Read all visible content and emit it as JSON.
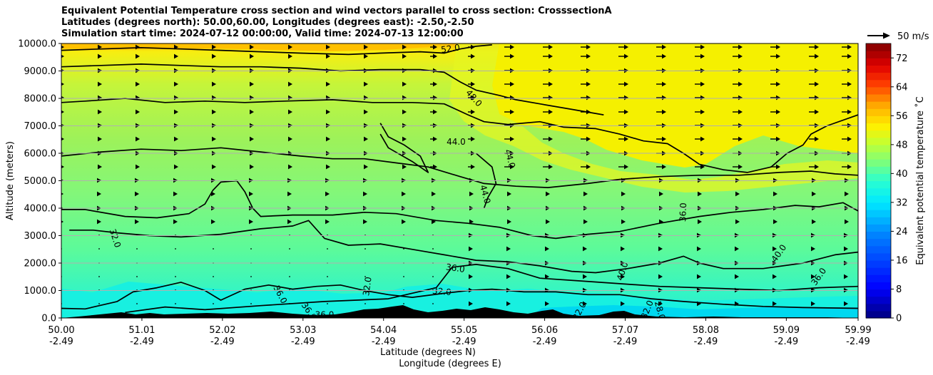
{
  "chart_data": {
    "type": "contour",
    "title_lines": [
      "Equivalent Potential Temperature cross section and wind vectors parallel to cross section: CrosssectionA",
      "Latitudes (degrees north): 50.00,60.00, Longitudes (degrees east): -2.50,-2.50",
      "Simulation start time: 2024-07-12 00:00:00, Valid time: 2024-07-13 12:00:00"
    ],
    "ylabel": "Altitude (meters)",
    "xlabel_lat": "Latitude (degrees N)",
    "xlabel_lon": "Longitude (degrees E)",
    "x_range": [
      50.0,
      59.99
    ],
    "ylim": [
      0,
      10000
    ],
    "y_ticks": [
      0,
      1000,
      2000,
      3000,
      4000,
      5000,
      6000,
      7000,
      8000,
      9000,
      10000
    ],
    "y_tick_labels": [
      "0.0",
      "1000.0",
      "2000.0",
      "3000.0",
      "4000.0",
      "5000.0",
      "6000.0",
      "7000.0",
      "8000.0",
      "9000.0",
      "10000.0"
    ],
    "x_ticks": [
      50.0,
      51.01,
      52.02,
      53.03,
      54.04,
      55.05,
      56.06,
      57.07,
      58.08,
      59.09,
      59.99
    ],
    "x_tick_lat_labels": [
      "50.00",
      "51.01",
      "52.02",
      "53.03",
      "54.04",
      "55.05",
      "56.06",
      "57.07",
      "58.08",
      "59.09",
      "59.99"
    ],
    "x_tick_lon_labels": [
      "-2.49",
      "-2.49",
      "-2.49",
      "-2.49",
      "-2.49",
      "-2.49",
      "-2.49",
      "-2.49",
      "-2.49",
      "-2.49",
      "-2.49"
    ],
    "grid": "horizontal",
    "colorbar": {
      "label": "Equivalent potential temperature ˚C",
      "min": 0,
      "max": 76,
      "step": 2,
      "ticks": [
        0,
        8,
        16,
        24,
        32,
        40,
        48,
        56,
        64,
        72
      ],
      "tick_labels": [
        "0",
        "8",
        "16",
        "24",
        "32",
        "40",
        "48",
        "56",
        "64",
        "72"
      ]
    },
    "quiver_key": {
      "label": "50 m/s",
      "speed": 50
    },
    "contour_lines": [
      {
        "level": 32,
        "points": [
          [
            50.0,
            350
          ],
          [
            50.3,
            330
          ],
          [
            50.7,
            600
          ],
          [
            50.9,
            950
          ],
          [
            51.2,
            1100
          ],
          [
            51.5,
            1300
          ],
          [
            51.8,
            1000
          ],
          [
            52.0,
            650
          ],
          [
            52.3,
            1050
          ],
          [
            52.6,
            1200
          ],
          [
            52.9,
            1050
          ],
          [
            53.2,
            1150
          ],
          [
            53.5,
            1200
          ],
          [
            53.8,
            1000
          ],
          [
            54.1,
            850
          ],
          [
            54.4,
            750
          ],
          [
            54.8,
            900
          ],
          [
            55.1,
            1000
          ],
          [
            55.4,
            1050
          ],
          [
            55.8,
            950
          ],
          [
            56.2,
            950
          ],
          [
            56.6,
            850
          ],
          [
            57.0,
            850
          ],
          [
            57.4,
            700
          ],
          [
            57.8,
            600
          ],
          [
            58.3,
            500
          ],
          [
            58.8,
            420
          ],
          [
            59.3,
            380
          ],
          [
            59.99,
            350
          ]
        ]
      },
      {
        "level": 36,
        "points": [
          [
            50.8,
            200
          ],
          [
            51.3,
            400
          ],
          [
            51.8,
            300
          ],
          [
            52.5,
            450
          ],
          [
            53.3,
            600
          ],
          [
            54.1,
            700
          ],
          [
            54.7,
            1100
          ],
          [
            54.9,
            1850
          ],
          [
            55.2,
            1950
          ],
          [
            55.6,
            1800
          ],
          [
            56.0,
            1450
          ],
          [
            56.5,
            1350
          ],
          [
            57.0,
            1250
          ],
          [
            57.5,
            1150
          ],
          [
            58.0,
            1100
          ],
          [
            58.5,
            1050
          ],
          [
            59.0,
            1000
          ],
          [
            59.5,
            1100
          ],
          [
            59.99,
            1150
          ]
        ]
      },
      {
        "level": 36,
        "points": [
          [
            50.1,
            3200
          ],
          [
            50.4,
            3200
          ],
          [
            50.7,
            3100
          ],
          [
            51.1,
            3000
          ],
          [
            51.5,
            2950
          ],
          [
            52.0,
            3050
          ],
          [
            52.5,
            3250
          ],
          [
            52.9,
            3350
          ],
          [
            53.1,
            3550
          ],
          [
            53.3,
            2900
          ],
          [
            53.6,
            2650
          ],
          [
            54.0,
            2700
          ],
          [
            54.5,
            2450
          ],
          [
            54.8,
            2300
          ],
          [
            55.2,
            2100
          ],
          [
            55.6,
            2050
          ],
          [
            56.0,
            1900
          ],
          [
            56.4,
            1700
          ],
          [
            56.7,
            1650
          ],
          [
            57.1,
            1800
          ],
          [
            57.5,
            2000
          ],
          [
            57.8,
            2250
          ],
          [
            58.0,
            2000
          ],
          [
            58.3,
            1800
          ],
          [
            58.8,
            1800
          ],
          [
            59.3,
            2000
          ],
          [
            59.7,
            2300
          ],
          [
            59.99,
            2400
          ]
        ]
      },
      {
        "level": 40,
        "points": [
          [
            50.0,
            3950
          ],
          [
            50.3,
            3950
          ],
          [
            50.8,
            3700
          ],
          [
            51.2,
            3650
          ],
          [
            51.6,
            3800
          ],
          [
            51.8,
            4150
          ],
          [
            51.9,
            4650
          ],
          [
            52.0,
            4950
          ],
          [
            52.2,
            5000
          ],
          [
            52.3,
            4600
          ],
          [
            52.4,
            4000
          ],
          [
            52.5,
            3700
          ],
          [
            52.9,
            3750
          ],
          [
            53.4,
            3750
          ],
          [
            53.8,
            3850
          ],
          [
            54.2,
            3800
          ],
          [
            54.7,
            3550
          ],
          [
            55.1,
            3450
          ],
          [
            55.5,
            3300
          ],
          [
            55.9,
            3000
          ],
          [
            56.2,
            2900
          ],
          [
            56.6,
            3050
          ],
          [
            57.0,
            3150
          ],
          [
            57.5,
            3450
          ],
          [
            58.0,
            3700
          ],
          [
            58.4,
            3850
          ],
          [
            58.8,
            3950
          ],
          [
            59.2,
            4100
          ],
          [
            59.5,
            4050
          ],
          [
            59.8,
            4200
          ],
          [
            59.99,
            3900
          ]
        ]
      },
      {
        "level": 44,
        "points": [
          [
            50.0,
            5900
          ],
          [
            50.5,
            6050
          ],
          [
            51.0,
            6150
          ],
          [
            51.5,
            6100
          ],
          [
            52.0,
            6200
          ],
          [
            52.5,
            6050
          ],
          [
            53.0,
            5900
          ],
          [
            53.4,
            5800
          ],
          [
            53.8,
            5800
          ],
          [
            54.2,
            5650
          ],
          [
            54.6,
            5500
          ],
          [
            55.0,
            5150
          ],
          [
            55.3,
            4900
          ],
          [
            55.7,
            4800
          ],
          [
            56.1,
            4750
          ],
          [
            56.6,
            4900
          ],
          [
            57.0,
            5050
          ],
          [
            57.5,
            5150
          ],
          [
            58.0,
            5200
          ],
          [
            58.5,
            5200
          ],
          [
            59.0,
            5300
          ],
          [
            59.4,
            5350
          ],
          [
            59.7,
            5250
          ],
          [
            59.99,
            5200
          ]
        ]
      },
      {
        "level": 44,
        "points": [
          [
            55.2,
            6000
          ],
          [
            55.4,
            5500
          ],
          [
            55.45,
            4900
          ],
          [
            55.35,
            4400
          ],
          [
            55.3,
            4000
          ]
        ]
      },
      {
        "level": 48,
        "points": [
          [
            50.0,
            7850
          ],
          [
            50.3,
            7900
          ],
          [
            50.8,
            8000
          ],
          [
            51.3,
            7850
          ],
          [
            51.8,
            7900
          ],
          [
            52.3,
            7850
          ],
          [
            52.8,
            7900
          ],
          [
            53.4,
            7950
          ],
          [
            53.9,
            7850
          ],
          [
            54.4,
            7850
          ],
          [
            54.8,
            7800
          ],
          [
            55.1,
            7400
          ],
          [
            55.3,
            7150
          ],
          [
            55.6,
            7050
          ],
          [
            56.0,
            7150
          ],
          [
            56.3,
            6950
          ],
          [
            56.7,
            6900
          ],
          [
            57.0,
            6700
          ],
          [
            57.3,
            6450
          ],
          [
            57.6,
            6350
          ],
          [
            57.8,
            6000
          ],
          [
            58.0,
            5600
          ],
          [
            58.3,
            5400
          ],
          [
            58.6,
            5300
          ],
          [
            58.9,
            5500
          ],
          [
            59.1,
            6000
          ],
          [
            59.3,
            6300
          ],
          [
            59.4,
            6700
          ],
          [
            59.6,
            7000
          ],
          [
            59.99,
            7400
          ]
        ]
      },
      {
        "level": 48,
        "points": [
          [
            54.0,
            7100
          ],
          [
            54.1,
            6600
          ],
          [
            54.3,
            6300
          ],
          [
            54.5,
            5900
          ],
          [
            54.6,
            5300
          ],
          [
            54.4,
            5700
          ],
          [
            54.1,
            6200
          ],
          [
            54.0,
            6700
          ]
        ]
      },
      {
        "level": 52,
        "points": [
          [
            50.0,
            9750
          ],
          [
            50.5,
            9800
          ],
          [
            51.0,
            9850
          ],
          [
            51.5,
            9800
          ],
          [
            52.0,
            9750
          ],
          [
            52.5,
            9700
          ],
          [
            53.0,
            9650
          ],
          [
            53.6,
            9600
          ],
          [
            54.0,
            9650
          ],
          [
            54.5,
            9700
          ],
          [
            54.8,
            9650
          ],
          [
            55.0,
            9800
          ],
          [
            55.2,
            9900
          ],
          [
            55.4,
            9950
          ]
        ]
      },
      {
        "level": 52,
        "points": [
          [
            50.0,
            9150
          ],
          [
            50.5,
            9200
          ],
          [
            51.0,
            9250
          ],
          [
            51.5,
            9200
          ],
          [
            52.0,
            9150
          ],
          [
            52.5,
            9150
          ],
          [
            53.0,
            9100
          ],
          [
            53.5,
            9000
          ],
          [
            54.0,
            9050
          ],
          [
            54.5,
            9050
          ],
          [
            54.8,
            8950
          ],
          [
            55.0,
            8600
          ],
          [
            55.2,
            8300
          ],
          [
            55.5,
            8100
          ],
          [
            55.7,
            7950
          ],
          [
            56.0,
            7800
          ],
          [
            56.4,
            7600
          ],
          [
            56.8,
            7400
          ]
        ]
      }
    ],
    "contour_labels": [
      {
        "text": "52.0",
        "x": 54.88,
        "y": 9800,
        "rot": -8
      },
      {
        "text": "48.0",
        "x": 55.17,
        "y": 8000,
        "rot": 48
      },
      {
        "text": "44.0",
        "x": 54.95,
        "y": 6400,
        "rot": 0
      },
      {
        "text": "44.0",
        "x": 55.62,
        "y": 5800,
        "rot": 75
      },
      {
        "text": "44.0",
        "x": 55.31,
        "y": 4500,
        "rot": 75
      },
      {
        "text": "36.0",
        "x": 57.8,
        "y": 3850,
        "rot": -88
      },
      {
        "text": "40.0",
        "x": 59.0,
        "y": 2350,
        "rot": -55
      },
      {
        "text": "36.0",
        "x": 54.94,
        "y": 1800,
        "rot": 8
      },
      {
        "text": "40.0",
        "x": 57.04,
        "y": 1700,
        "rot": -72
      },
      {
        "text": "36.0",
        "x": 59.5,
        "y": 1500,
        "rot": -55
      },
      {
        "text": "32.0",
        "x": 50.67,
        "y": 2900,
        "rot": 72
      },
      {
        "text": "32.0",
        "x": 54.77,
        "y": 950,
        "rot": 5
      },
      {
        "text": "32.0",
        "x": 53.84,
        "y": 1150,
        "rot": -82
      },
      {
        "text": "36.0",
        "x": 52.74,
        "y": 850,
        "rot": 62
      },
      {
        "text": "36.0",
        "x": 53.1,
        "y": 240,
        "rot": 55
      },
      {
        "text": "36.0",
        "x": 53.3,
        "y": 100,
        "rot": 0
      },
      {
        "text": "32.0",
        "x": 56.5,
        "y": 250,
        "rot": -62
      },
      {
        "text": "32.0",
        "x": 57.35,
        "y": 300,
        "rot": -68
      },
      {
        "text": "28.0",
        "x": 57.5,
        "y": 270,
        "rot": 75
      }
    ],
    "fill_description_levels": {
      "surface": 28,
      "low": 32,
      "boundary": 36,
      "mid": 40,
      "upper": 44,
      "high": 48,
      "top": 52
    }
  }
}
